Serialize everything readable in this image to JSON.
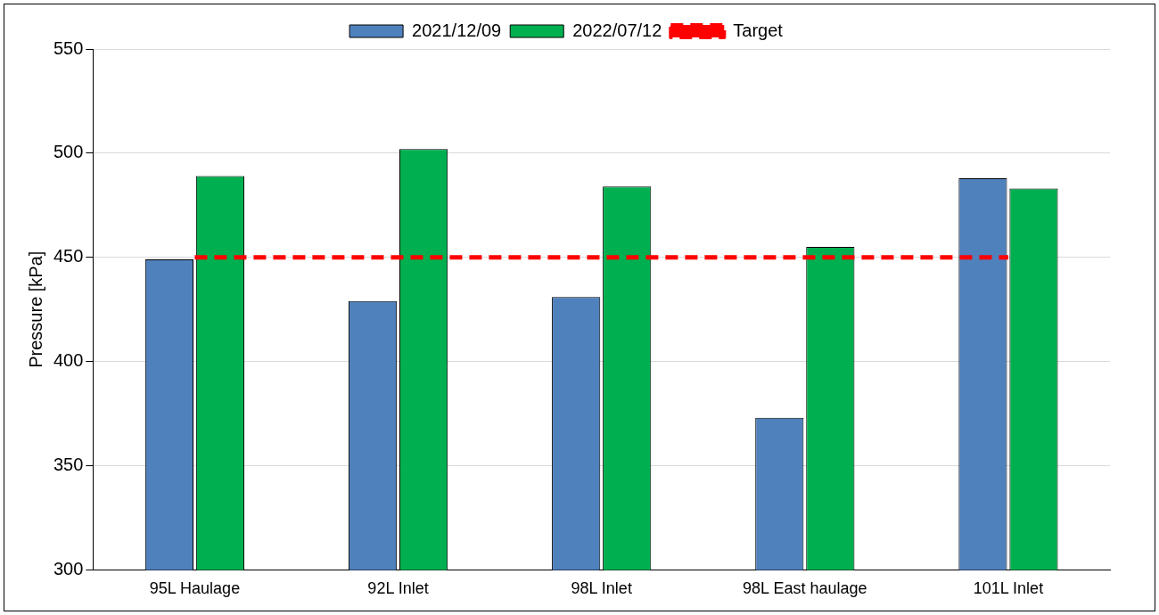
{
  "chart_data": {
    "type": "bar",
    "ylabel": "Pressure [kPa]",
    "categories": [
      "95L Haulage",
      "92L Inlet",
      "98L Inlet",
      "98L East haulage",
      "101L Inlet"
    ],
    "series": [
      {
        "name": "2021/12/09",
        "color": "#4f81bd",
        "values": [
          449,
          429,
          431,
          373,
          488
        ]
      },
      {
        "name": "2022/07/12",
        "color": "#00b050",
        "values": [
          489,
          502,
          484,
          455,
          483
        ]
      },
      {
        "name": "Target",
        "type": "line",
        "color": "#ff0000",
        "line_style": "dashed",
        "marker": "none",
        "values": [
          450,
          450,
          450,
          450,
          450
        ]
      }
    ],
    "ylim": [
      300,
      550
    ],
    "yticks": [
      300,
      350,
      400,
      450,
      500,
      550
    ],
    "grid": "y",
    "legend": "top"
  }
}
